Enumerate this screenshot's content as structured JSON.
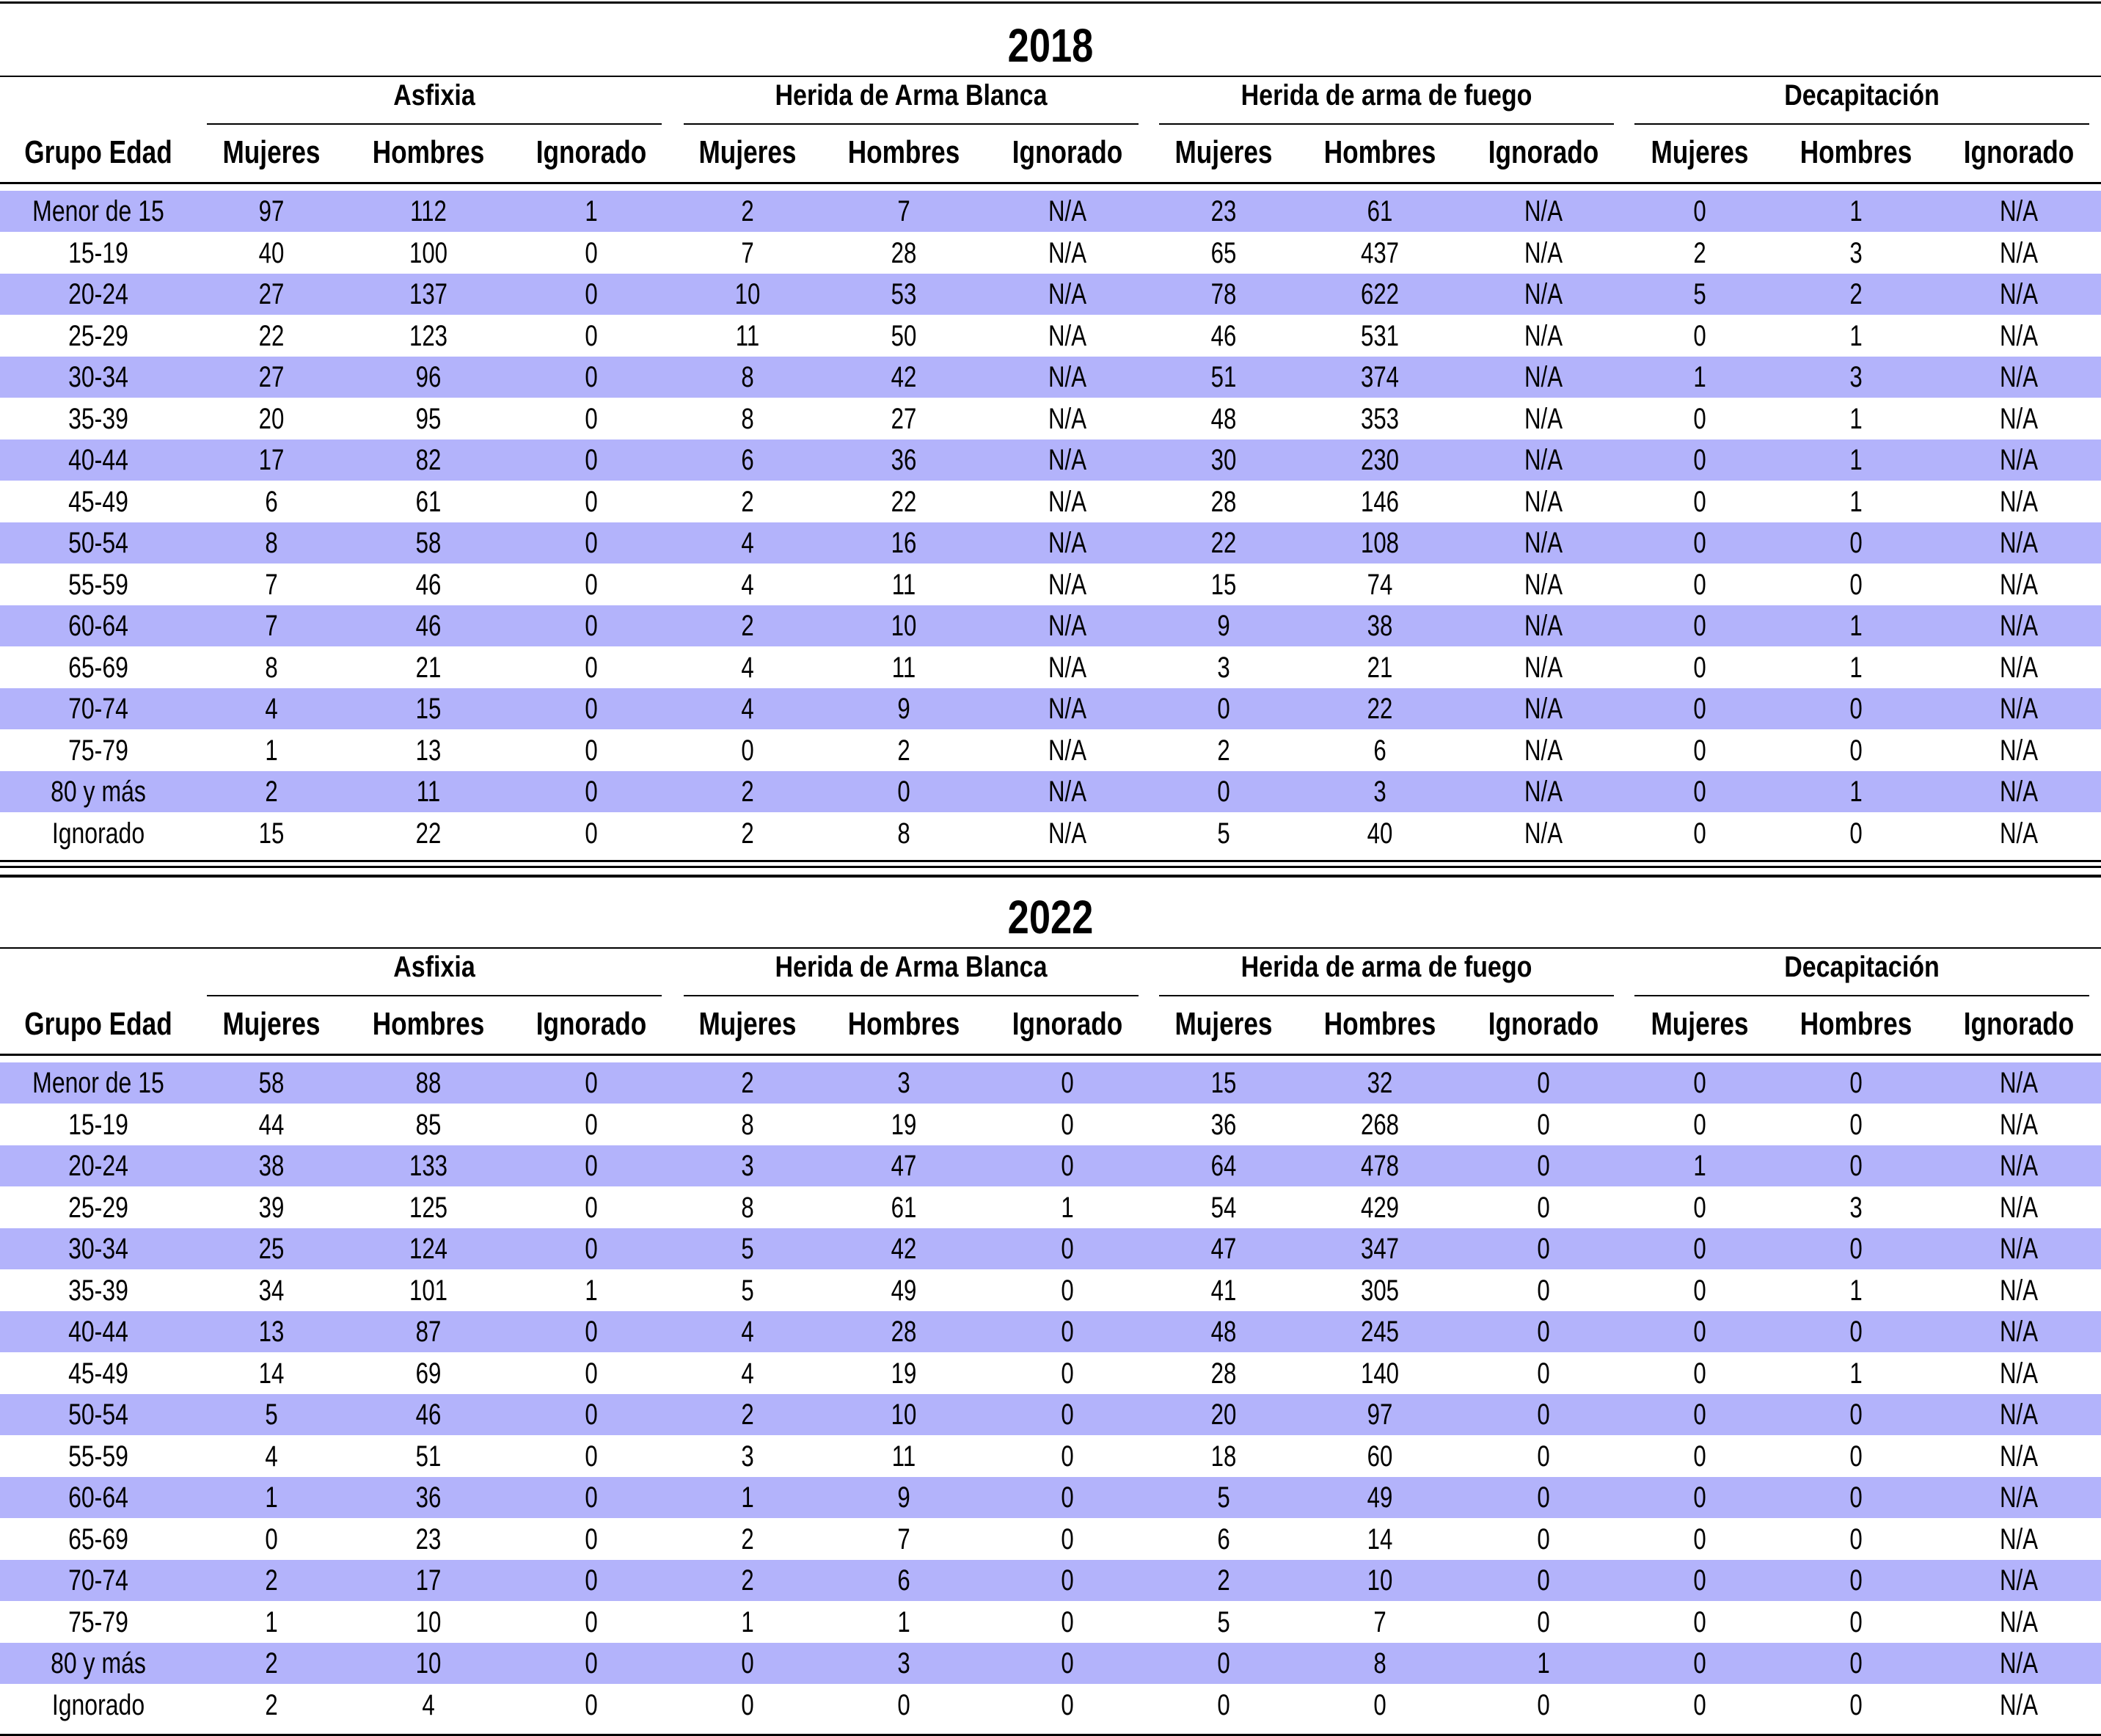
{
  "tables": [
    {
      "year": "2018",
      "age_header": "Grupo Edad",
      "groups": [
        "Asfixia",
        "Herida de Arma Blanca",
        "Herida de arma de fuego",
        "Decapitación"
      ],
      "subheaders": [
        "Mujeres",
        "Hombres",
        "Ignorado"
      ],
      "rows": [
        {
          "age": "Menor de 15",
          "values": [
            "97",
            "112",
            "1",
            "2",
            "7",
            "N/A",
            "23",
            "61",
            "N/A",
            "0",
            "1",
            "N/A"
          ]
        },
        {
          "age": "15-19",
          "values": [
            "40",
            "100",
            "0",
            "7",
            "28",
            "N/A",
            "65",
            "437",
            "N/A",
            "2",
            "3",
            "N/A"
          ]
        },
        {
          "age": "20-24",
          "values": [
            "27",
            "137",
            "0",
            "10",
            "53",
            "N/A",
            "78",
            "622",
            "N/A",
            "5",
            "2",
            "N/A"
          ]
        },
        {
          "age": "25-29",
          "values": [
            "22",
            "123",
            "0",
            "11",
            "50",
            "N/A",
            "46",
            "531",
            "N/A",
            "0",
            "1",
            "N/A"
          ]
        },
        {
          "age": "30-34",
          "values": [
            "27",
            "96",
            "0",
            "8",
            "42",
            "N/A",
            "51",
            "374",
            "N/A",
            "1",
            "3",
            "N/A"
          ]
        },
        {
          "age": "35-39",
          "values": [
            "20",
            "95",
            "0",
            "8",
            "27",
            "N/A",
            "48",
            "353",
            "N/A",
            "0",
            "1",
            "N/A"
          ]
        },
        {
          "age": "40-44",
          "values": [
            "17",
            "82",
            "0",
            "6",
            "36",
            "N/A",
            "30",
            "230",
            "N/A",
            "0",
            "1",
            "N/A"
          ]
        },
        {
          "age": "45-49",
          "values": [
            "6",
            "61",
            "0",
            "2",
            "22",
            "N/A",
            "28",
            "146",
            "N/A",
            "0",
            "1",
            "N/A"
          ]
        },
        {
          "age": "50-54",
          "values": [
            "8",
            "58",
            "0",
            "4",
            "16",
            "N/A",
            "22",
            "108",
            "N/A",
            "0",
            "0",
            "N/A"
          ]
        },
        {
          "age": "55-59",
          "values": [
            "7",
            "46",
            "0",
            "4",
            "11",
            "N/A",
            "15",
            "74",
            "N/A",
            "0",
            "0",
            "N/A"
          ]
        },
        {
          "age": "60-64",
          "values": [
            "7",
            "46",
            "0",
            "2",
            "10",
            "N/A",
            "9",
            "38",
            "N/A",
            "0",
            "1",
            "N/A"
          ]
        },
        {
          "age": "65-69",
          "values": [
            "8",
            "21",
            "0",
            "4",
            "11",
            "N/A",
            "3",
            "21",
            "N/A",
            "0",
            "1",
            "N/A"
          ]
        },
        {
          "age": "70-74",
          "values": [
            "4",
            "15",
            "0",
            "4",
            "9",
            "N/A",
            "0",
            "22",
            "N/A",
            "0",
            "0",
            "N/A"
          ]
        },
        {
          "age": "75-79",
          "values": [
            "1",
            "13",
            "0",
            "0",
            "2",
            "N/A",
            "2",
            "6",
            "N/A",
            "0",
            "0",
            "N/A"
          ]
        },
        {
          "age": "80 y más",
          "values": [
            "2",
            "11",
            "0",
            "2",
            "0",
            "N/A",
            "0",
            "3",
            "N/A",
            "0",
            "1",
            "N/A"
          ]
        },
        {
          "age": "Ignorado",
          "values": [
            "15",
            "22",
            "0",
            "2",
            "8",
            "N/A",
            "5",
            "40",
            "N/A",
            "0",
            "0",
            "N/A"
          ]
        }
      ]
    },
    {
      "year": "2022",
      "age_header": "Grupo Edad",
      "groups": [
        "Asfixia",
        "Herida de Arma Blanca",
        "Herida de arma de fuego",
        "Decapitación"
      ],
      "subheaders": [
        "Mujeres",
        "Hombres",
        "Ignorado"
      ],
      "rows": [
        {
          "age": "Menor de 15",
          "values": [
            "58",
            "88",
            "0",
            "2",
            "3",
            "0",
            "15",
            "32",
            "0",
            "0",
            "0",
            "N/A"
          ]
        },
        {
          "age": "15-19",
          "values": [
            "44",
            "85",
            "0",
            "8",
            "19",
            "0",
            "36",
            "268",
            "0",
            "0",
            "0",
            "N/A"
          ]
        },
        {
          "age": "20-24",
          "values": [
            "38",
            "133",
            "0",
            "3",
            "47",
            "0",
            "64",
            "478",
            "0",
            "1",
            "0",
            "N/A"
          ]
        },
        {
          "age": "25-29",
          "values": [
            "39",
            "125",
            "0",
            "8",
            "61",
            "1",
            "54",
            "429",
            "0",
            "0",
            "3",
            "N/A"
          ]
        },
        {
          "age": "30-34",
          "values": [
            "25",
            "124",
            "0",
            "5",
            "42",
            "0",
            "47",
            "347",
            "0",
            "0",
            "0",
            "N/A"
          ]
        },
        {
          "age": "35-39",
          "values": [
            "34",
            "101",
            "1",
            "5",
            "49",
            "0",
            "41",
            "305",
            "0",
            "0",
            "1",
            "N/A"
          ]
        },
        {
          "age": "40-44",
          "values": [
            "13",
            "87",
            "0",
            "4",
            "28",
            "0",
            "48",
            "245",
            "0",
            "0",
            "0",
            "N/A"
          ]
        },
        {
          "age": "45-49",
          "values": [
            "14",
            "69",
            "0",
            "4",
            "19",
            "0",
            "28",
            "140",
            "0",
            "0",
            "1",
            "N/A"
          ]
        },
        {
          "age": "50-54",
          "values": [
            "5",
            "46",
            "0",
            "2",
            "10",
            "0",
            "20",
            "97",
            "0",
            "0",
            "0",
            "N/A"
          ]
        },
        {
          "age": "55-59",
          "values": [
            "4",
            "51",
            "0",
            "3",
            "11",
            "0",
            "18",
            "60",
            "0",
            "0",
            "0",
            "N/A"
          ]
        },
        {
          "age": "60-64",
          "values": [
            "1",
            "36",
            "0",
            "1",
            "9",
            "0",
            "5",
            "49",
            "0",
            "0",
            "0",
            "N/A"
          ]
        },
        {
          "age": "65-69",
          "values": [
            "0",
            "23",
            "0",
            "2",
            "7",
            "0",
            "6",
            "14",
            "0",
            "0",
            "0",
            "N/A"
          ]
        },
        {
          "age": "70-74",
          "values": [
            "2",
            "17",
            "0",
            "2",
            "6",
            "0",
            "2",
            "10",
            "0",
            "0",
            "0",
            "N/A"
          ]
        },
        {
          "age": "75-79",
          "values": [
            "1",
            "10",
            "0",
            "1",
            "1",
            "0",
            "5",
            "7",
            "0",
            "0",
            "0",
            "N/A"
          ]
        },
        {
          "age": "80 y más",
          "values": [
            "2",
            "10",
            "0",
            "0",
            "3",
            "0",
            "0",
            "8",
            "1",
            "0",
            "0",
            "N/A"
          ]
        },
        {
          "age": "Ignorado",
          "values": [
            "2",
            "4",
            "0",
            "0",
            "0",
            "0",
            "0",
            "0",
            "0",
            "0",
            "0",
            "N/A"
          ]
        }
      ]
    }
  ],
  "colors": {
    "row_shade": "#b3b3fb",
    "rule": "#000000"
  }
}
